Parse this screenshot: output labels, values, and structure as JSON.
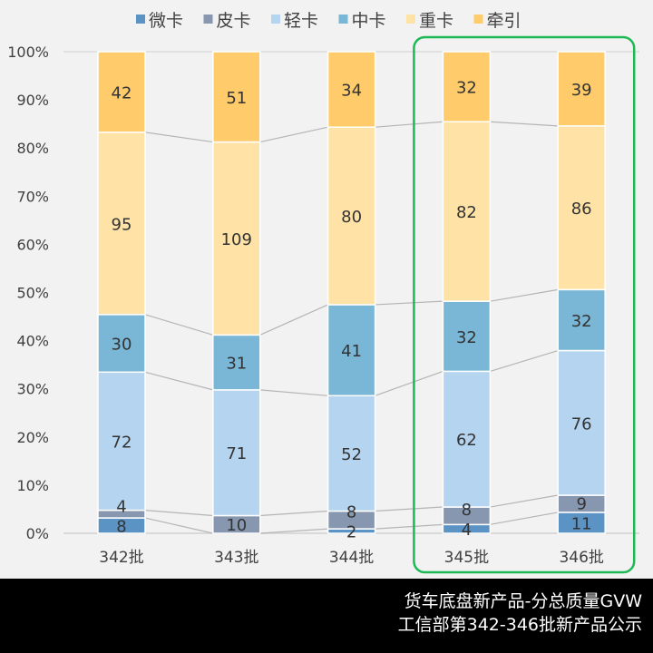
{
  "chart_data": {
    "type": "bar",
    "stacked": "percent",
    "categories": [
      "342批",
      "343批",
      "344批",
      "345批",
      "346批"
    ],
    "series": [
      {
        "name": "微卡",
        "color": "#5b93c5",
        "values": [
          8,
          0,
          2,
          4,
          11
        ]
      },
      {
        "name": "皮卡",
        "color": "#8797b0",
        "values": [
          4,
          10,
          8,
          8,
          9
        ]
      },
      {
        "name": "轻卡",
        "color": "#b4d4f0",
        "values": [
          72,
          71,
          52,
          62,
          76
        ]
      },
      {
        "name": "中卡",
        "color": "#7ab6d6",
        "values": [
          30,
          31,
          41,
          32,
          32
        ]
      },
      {
        "name": "重卡",
        "color": "#ffe3a6",
        "values": [
          95,
          109,
          80,
          82,
          86
        ]
      },
      {
        "name": "牵引",
        "color": "#ffcb6b",
        "values": [
          42,
          51,
          34,
          32,
          39
        ]
      }
    ],
    "yticks": [
      "0%",
      "10%",
      "20%",
      "30%",
      "40%",
      "50%",
      "60%",
      "70%",
      "80%",
      "90%",
      "100%"
    ],
    "ylim": [
      0,
      100
    ],
    "legend": "top",
    "series_lines": true,
    "highlight": {
      "categories": [
        "345批",
        "346批"
      ],
      "color": "#1db954"
    }
  },
  "footer": {
    "line1": "货车底盘新产品-分总质量GVW",
    "line2": "工信部第342-346批新产品公示"
  }
}
